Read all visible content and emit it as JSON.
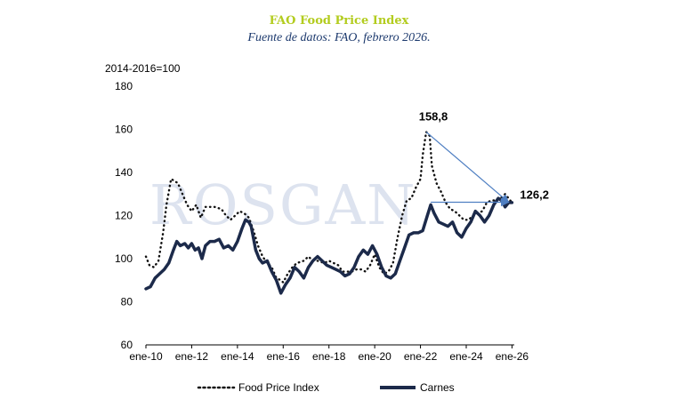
{
  "title": "FAO Food Price Index",
  "subtitle": "Fuente de datos: FAO, febrero 2026.",
  "watermark": "ROSGAN",
  "chart_data": {
    "type": "line",
    "ylabel": "2014-2016=100",
    "ylim": [
      60,
      180
    ],
    "yticks": [
      "60",
      "80",
      "100",
      "120",
      "140",
      "160",
      "180"
    ],
    "xlim": [
      2010.0,
      2026.1
    ],
    "xticks": [
      {
        "label": "ene-10",
        "x": 2010
      },
      {
        "label": "ene-12",
        "x": 2012
      },
      {
        "label": "ene-14",
        "x": 2014
      },
      {
        "label": "ene-16",
        "x": 2016
      },
      {
        "label": "ene-18",
        "x": 2018
      },
      {
        "label": "ene-20",
        "x": 2020
      },
      {
        "label": "ene-22",
        "x": 2022
      },
      {
        "label": "ene-24",
        "x": 2024
      },
      {
        "label": "ene-26",
        "x": 2026
      }
    ],
    "series": [
      {
        "name": "Food Price Index",
        "style": "dotted",
        "color": "#111111",
        "points": [
          [
            2010.0,
            101
          ],
          [
            2010.15,
            97
          ],
          [
            2010.35,
            96
          ],
          [
            2010.55,
            99
          ],
          [
            2010.75,
            112
          ],
          [
            2010.9,
            125
          ],
          [
            2011.1,
            137
          ],
          [
            2011.4,
            135
          ],
          [
            2011.6,
            130
          ],
          [
            2011.8,
            125
          ],
          [
            2012.0,
            122
          ],
          [
            2012.2,
            125
          ],
          [
            2012.4,
            119
          ],
          [
            2012.6,
            124
          ],
          [
            2012.8,
            124
          ],
          [
            2013.0,
            124
          ],
          [
            2013.3,
            123
          ],
          [
            2013.5,
            120
          ],
          [
            2013.7,
            118
          ],
          [
            2013.9,
            120
          ],
          [
            2014.1,
            122
          ],
          [
            2014.3,
            121
          ],
          [
            2014.5,
            119
          ],
          [
            2014.7,
            113
          ],
          [
            2014.9,
            106
          ],
          [
            2015.1,
            101
          ],
          [
            2015.3,
            98
          ],
          [
            2015.5,
            96
          ],
          [
            2015.7,
            91
          ],
          [
            2015.9,
            90
          ],
          [
            2016.0,
            89
          ],
          [
            2016.2,
            93
          ],
          [
            2016.4,
            96
          ],
          [
            2016.6,
            98
          ],
          [
            2016.9,
            99
          ],
          [
            2017.1,
            101
          ],
          [
            2017.3,
            99
          ],
          [
            2017.5,
            99
          ],
          [
            2017.8,
            98
          ],
          [
            2018.0,
            99
          ],
          [
            2018.2,
            98
          ],
          [
            2018.4,
            97
          ],
          [
            2018.6,
            94
          ],
          [
            2018.8,
            94
          ],
          [
            2019.0,
            94
          ],
          [
            2019.2,
            95
          ],
          [
            2019.4,
            95
          ],
          [
            2019.6,
            94
          ],
          [
            2019.8,
            97
          ],
          [
            2020.0,
            102
          ],
          [
            2020.2,
            96
          ],
          [
            2020.4,
            93
          ],
          [
            2020.6,
            94
          ],
          [
            2020.8,
            98
          ],
          [
            2021.0,
            110
          ],
          [
            2021.2,
            120
          ],
          [
            2021.4,
            127
          ],
          [
            2021.6,
            128
          ],
          [
            2021.8,
            133
          ],
          [
            2022.0,
            137
          ],
          [
            2022.1,
            148
          ],
          [
            2022.25,
            158.8
          ],
          [
            2022.4,
            157
          ],
          [
            2022.5,
            143
          ],
          [
            2022.7,
            135
          ],
          [
            2022.9,
            131
          ],
          [
            2023.1,
            126
          ],
          [
            2023.3,
            123
          ],
          [
            2023.5,
            122
          ],
          [
            2023.7,
            120
          ],
          [
            2023.9,
            118
          ],
          [
            2024.1,
            118
          ],
          [
            2024.3,
            120
          ],
          [
            2024.5,
            121
          ],
          [
            2024.7,
            122
          ],
          [
            2024.9,
            126
          ],
          [
            2025.1,
            127
          ],
          [
            2025.3,
            127
          ],
          [
            2025.5,
            128
          ],
          [
            2025.7,
            130
          ],
          [
            2025.85,
            128
          ],
          [
            2026.0,
            126
          ]
        ]
      },
      {
        "name": "Carnes",
        "style": "solid",
        "color": "#1c2a4a",
        "points": [
          [
            2010.0,
            86
          ],
          [
            2010.2,
            87
          ],
          [
            2010.4,
            91
          ],
          [
            2010.6,
            93
          ],
          [
            2010.8,
            95
          ],
          [
            2011.0,
            98
          ],
          [
            2011.2,
            104
          ],
          [
            2011.35,
            108
          ],
          [
            2011.5,
            106
          ],
          [
            2011.7,
            107
          ],
          [
            2011.85,
            105
          ],
          [
            2012.0,
            107
          ],
          [
            2012.15,
            104
          ],
          [
            2012.3,
            105
          ],
          [
            2012.45,
            100
          ],
          [
            2012.6,
            106
          ],
          [
            2012.8,
            108
          ],
          [
            2013.0,
            108
          ],
          [
            2013.2,
            109
          ],
          [
            2013.4,
            105
          ],
          [
            2013.6,
            106
          ],
          [
            2013.8,
            104
          ],
          [
            2014.0,
            108
          ],
          [
            2014.2,
            114
          ],
          [
            2014.35,
            118
          ],
          [
            2014.5,
            117
          ],
          [
            2014.6,
            115
          ],
          [
            2014.8,
            104
          ],
          [
            2014.95,
            100
          ],
          [
            2015.1,
            98
          ],
          [
            2015.3,
            99
          ],
          [
            2015.5,
            94
          ],
          [
            2015.7,
            90
          ],
          [
            2015.9,
            84
          ],
          [
            2016.1,
            88
          ],
          [
            2016.3,
            91
          ],
          [
            2016.5,
            96
          ],
          [
            2016.7,
            94
          ],
          [
            2016.9,
            91
          ],
          [
            2017.1,
            96
          ],
          [
            2017.3,
            99
          ],
          [
            2017.5,
            101
          ],
          [
            2017.7,
            99
          ],
          [
            2017.9,
            97
          ],
          [
            2018.1,
            96
          ],
          [
            2018.3,
            95
          ],
          [
            2018.5,
            94
          ],
          [
            2018.7,
            92
          ],
          [
            2018.9,
            93
          ],
          [
            2019.1,
            96
          ],
          [
            2019.3,
            101
          ],
          [
            2019.5,
            104
          ],
          [
            2019.7,
            102
          ],
          [
            2019.9,
            106
          ],
          [
            2020.1,
            102
          ],
          [
            2020.3,
            96
          ],
          [
            2020.5,
            92
          ],
          [
            2020.7,
            91
          ],
          [
            2020.9,
            93
          ],
          [
            2021.1,
            99
          ],
          [
            2021.3,
            105
          ],
          [
            2021.5,
            111
          ],
          [
            2021.7,
            112
          ],
          [
            2021.9,
            112
          ],
          [
            2022.1,
            113
          ],
          [
            2022.3,
            120
          ],
          [
            2022.45,
            125
          ],
          [
            2022.6,
            121
          ],
          [
            2022.8,
            117
          ],
          [
            2023.0,
            116
          ],
          [
            2023.2,
            115
          ],
          [
            2023.4,
            117
          ],
          [
            2023.6,
            112
          ],
          [
            2023.8,
            110
          ],
          [
            2024.0,
            114
          ],
          [
            2024.2,
            117
          ],
          [
            2024.4,
            122
          ],
          [
            2024.6,
            120
          ],
          [
            2024.8,
            117
          ],
          [
            2025.0,
            120
          ],
          [
            2025.2,
            125
          ],
          [
            2025.4,
            128
          ],
          [
            2025.55,
            127
          ],
          [
            2025.7,
            124
          ],
          [
            2025.85,
            126
          ],
          [
            2026.0,
            126
          ]
        ]
      }
    ],
    "annotations": [
      {
        "label": "158,8",
        "x": 2022.25,
        "y": 158.8
      },
      {
        "label": "126,2",
        "x": 2026.0,
        "y": 126.2
      }
    ],
    "arrows": [
      {
        "from": [
          2022.25,
          158.8
        ],
        "to": [
          2026.0,
          126.2
        ]
      },
      {
        "from": [
          2022.45,
          126.2
        ],
        "to": [
          2026.0,
          126.2
        ]
      }
    ],
    "arrow_color": "#4f7fc2",
    "legend": [
      "Food Price Index",
      "Carnes"
    ]
  }
}
